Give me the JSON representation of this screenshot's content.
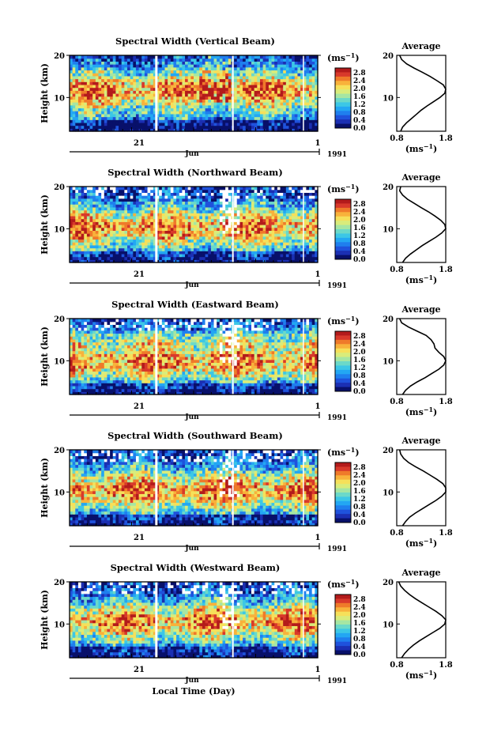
{
  "colors": {
    "colormap": [
      "#08106a",
      "#1b2fb3",
      "#1f52dc",
      "#1f7fee",
      "#23a7f3",
      "#3cc7e6",
      "#6bd9c9",
      "#a6e6a3",
      "#d9ec7b",
      "#f6e05a",
      "#f8b23b",
      "#ef7a2a",
      "#d8392b",
      "#b31b1b"
    ],
    "missing": "#ffffff",
    "axes": "#000000"
  },
  "layout_order": [
    "vertical",
    "northward",
    "eastward",
    "southward",
    "westward"
  ],
  "shared": {
    "ylabel": "Height (km)",
    "unit_label": "(ms",
    "unit_exp": "−1",
    "unit_close": ")",
    "colorbar_ticks": [
      "2.8",
      "2.4",
      "2.0",
      "1.6",
      "1.2",
      "0.8",
      "0.4",
      "0.0"
    ],
    "avg_title": "Average",
    "avg_xlabel": "(ms",
    "avg_xlabel_exp": "−1",
    "avg_xlabel_close": ")",
    "height_ticks": [
      "20",
      "10"
    ],
    "x_day_label": "21",
    "x_month_label": "Jun",
    "x_end_label": "1",
    "x_year_label": "1991",
    "xlabel": "Local Time (Day)"
  },
  "chart_data": [
    {
      "id": "vertical",
      "type": "heatmap",
      "title": "Spectral Width (Vertical Beam)",
      "xlabel": "Local Time (Day)",
      "ylabel": "Height (km)",
      "ylim": [
        2,
        20
      ],
      "colorbar_range": [
        0.0,
        2.8
      ],
      "colorbar_unit": "ms−1",
      "avg_profile": {
        "title": "Average",
        "xlim": [
          0.8,
          1.8
        ],
        "xticks": [
          "0.8",
          "1.8"
        ],
        "height": [
          2,
          3,
          4,
          5,
          6,
          7,
          8,
          9,
          10,
          11,
          12,
          13,
          14,
          15,
          16,
          17,
          18,
          19,
          20
        ],
        "width": [
          0.88,
          0.92,
          1.0,
          1.1,
          1.2,
          1.3,
          1.42,
          1.55,
          1.68,
          1.78,
          1.8,
          1.75,
          1.62,
          1.48,
          1.32,
          1.15,
          1.0,
          0.9,
          0.86
        ]
      }
    },
    {
      "id": "northward",
      "type": "heatmap",
      "title": "Spectral Width (Northward Beam)",
      "xlabel": "Local Time (Day)",
      "ylabel": "Height (km)",
      "ylim": [
        2,
        20
      ],
      "colorbar_range": [
        0.0,
        2.8
      ],
      "colorbar_unit": "ms−1",
      "avg_profile": {
        "title": "Average",
        "xlim": [
          0.8,
          1.8
        ],
        "xticks": [
          "0.8",
          "1.8"
        ],
        "height": [
          2,
          3,
          4,
          5,
          6,
          7,
          8,
          9,
          10,
          11,
          12,
          13,
          14,
          15,
          16,
          17,
          18,
          19,
          20
        ],
        "width": [
          0.92,
          0.98,
          1.08,
          1.2,
          1.32,
          1.46,
          1.6,
          1.72,
          1.8,
          1.78,
          1.7,
          1.58,
          1.45,
          1.3,
          1.16,
          1.02,
          0.92,
          0.86,
          0.88
        ]
      }
    },
    {
      "id": "eastward",
      "type": "heatmap",
      "title": "Spectral Width (Eastward Beam)",
      "xlabel": "Local Time (Day)",
      "ylabel": "Height (km)",
      "ylim": [
        2,
        20
      ],
      "colorbar_range": [
        0.0,
        2.8
      ],
      "colorbar_unit": "ms−1",
      "avg_profile": {
        "title": "Average",
        "xlim": [
          0.8,
          1.8
        ],
        "xticks": [
          "0.8",
          "1.8"
        ],
        "height": [
          2,
          3,
          4,
          5,
          6,
          7,
          8,
          9,
          10,
          11,
          12,
          13,
          14,
          15,
          16,
          17,
          18,
          19,
          20
        ],
        "width": [
          0.92,
          0.98,
          1.08,
          1.22,
          1.38,
          1.52,
          1.66,
          1.76,
          1.8,
          1.76,
          1.66,
          1.58,
          1.56,
          1.5,
          1.4,
          1.22,
          1.04,
          0.9,
          0.86
        ]
      }
    },
    {
      "id": "southward",
      "type": "heatmap",
      "title": "Spectral Width (Southward Beam)",
      "xlabel": "Local Time (Day)",
      "ylabel": "Height (km)",
      "ylim": [
        2,
        20
      ],
      "colorbar_range": [
        0.0,
        2.8
      ],
      "colorbar_unit": "ms−1",
      "avg_profile": {
        "title": "Average",
        "xlim": [
          0.8,
          1.8
        ],
        "xticks": [
          "0.8",
          "1.8"
        ],
        "height": [
          2,
          3,
          4,
          5,
          6,
          7,
          8,
          9,
          10,
          11,
          12,
          13,
          14,
          15,
          16,
          17,
          18,
          19,
          20
        ],
        "width": [
          0.92,
          0.98,
          1.06,
          1.18,
          1.32,
          1.46,
          1.6,
          1.72,
          1.8,
          1.8,
          1.74,
          1.62,
          1.48,
          1.34,
          1.18,
          1.04,
          0.94,
          0.88,
          0.86
        ]
      }
    },
    {
      "id": "westward",
      "type": "heatmap",
      "title": "Spectral Width (Westward Beam)",
      "xlabel": "Local Time (Day)",
      "ylabel": "Height (km)",
      "ylim": [
        2,
        20
      ],
      "colorbar_range": [
        0.0,
        2.8
      ],
      "colorbar_unit": "ms−1",
      "avg_profile": {
        "title": "Average",
        "xlim": [
          0.8,
          1.8
        ],
        "xticks": [
          "0.8",
          "1.8"
        ],
        "height": [
          2,
          3,
          4,
          5,
          6,
          7,
          8,
          9,
          10,
          11,
          12,
          13,
          14,
          15,
          16,
          17,
          18,
          19,
          20
        ],
        "width": [
          0.9,
          0.96,
          1.04,
          1.14,
          1.26,
          1.4,
          1.54,
          1.68,
          1.78,
          1.8,
          1.72,
          1.6,
          1.46,
          1.32,
          1.18,
          1.06,
          0.96,
          0.88,
          0.84
        ]
      }
    }
  ]
}
